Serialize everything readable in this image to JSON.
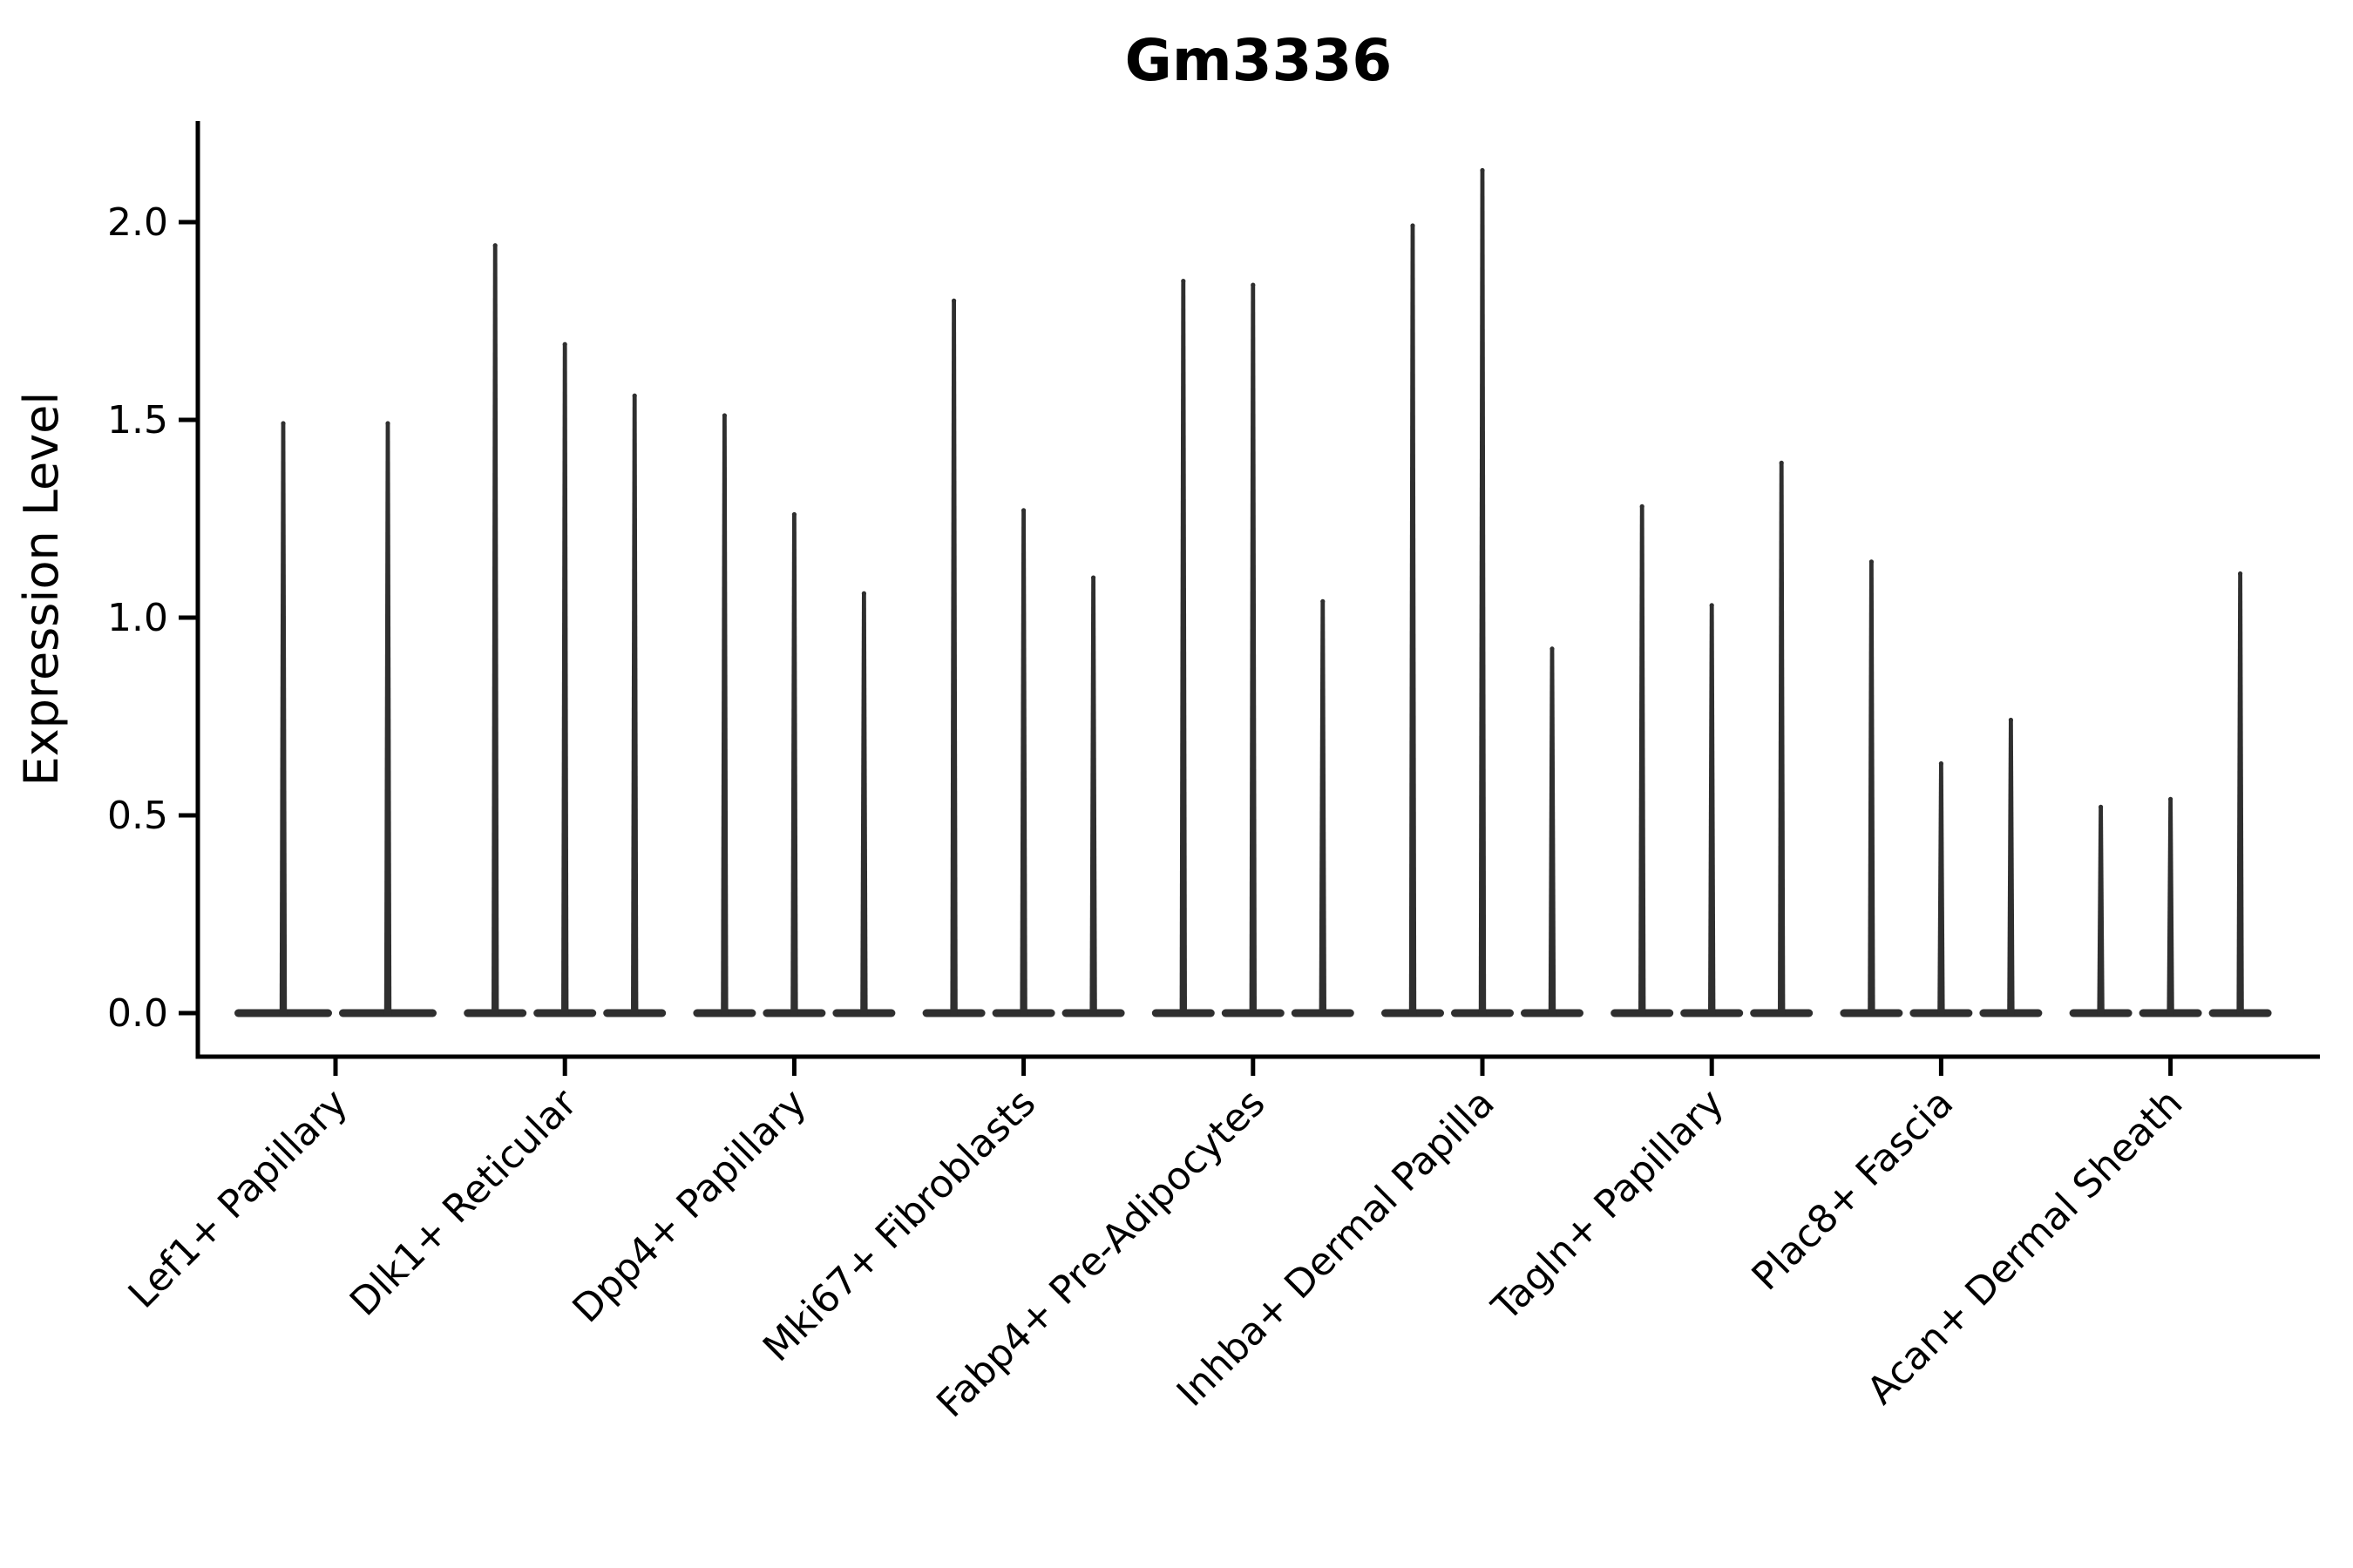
{
  "chart_data": {
    "type": "violin",
    "title": "Gm3336",
    "ylabel": "Expression Level",
    "xlabel": "",
    "ylim": [
      -0.11,
      2.26
    ],
    "yticks": [
      0.0,
      0.5,
      1.0,
      1.5,
      2.0
    ],
    "ytick_labels": [
      "0.0",
      "0.5",
      "1.0",
      "1.5",
      "2.0"
    ],
    "x_tick_rotation_deg": 45,
    "grid": false,
    "legend_position": "none",
    "colors": {
      "violin": "#2f2f2f",
      "axis": "#000000",
      "background": "#ffffff"
    },
    "categories": [
      "Lef1+ Papillary",
      "Dlk1+ Reticular",
      "Dpp4+ Papillary",
      "Mki67+ Fibroblasts",
      "Fabp4+ Pre-Adipocytes",
      "Inhba+ Dermal Papilla",
      "Tagln+ Papillary",
      "Plac8+ Fascia",
      "Acan+ Dermal Sheath"
    ],
    "groups": [
      {
        "label": "Lef1+ Papillary",
        "violin_baseline": 0,
        "violin_max_values": [
          1.5,
          1.5
        ]
      },
      {
        "label": "Dlk1+ Reticular",
        "violin_baseline": 0,
        "violin_max_values": [
          1.95,
          1.7,
          1.57
        ]
      },
      {
        "label": "Dpp4+ Papillary",
        "violin_baseline": 0,
        "violin_max_values": [
          1.52,
          1.27,
          1.07
        ]
      },
      {
        "label": "Mki67+ Fibroblasts",
        "violin_baseline": 0,
        "violin_max_values": [
          1.81,
          1.28,
          1.11
        ]
      },
      {
        "label": "Fabp4+ Pre-Adipocytes",
        "violin_baseline": 0,
        "violin_max_values": [
          1.86,
          1.85,
          1.05
        ]
      },
      {
        "label": "Inhba+ Dermal Papilla",
        "violin_baseline": 0,
        "violin_max_values": [
          2.0,
          2.14,
          0.93
        ]
      },
      {
        "label": "Tagln+ Papillary",
        "violin_baseline": 0,
        "violin_max_values": [
          1.29,
          1.04,
          1.4
        ]
      },
      {
        "label": "Plac8+ Fascia",
        "violin_baseline": 0,
        "violin_max_values": [
          1.15,
          0.64,
          0.75
        ]
      },
      {
        "label": "Acan+ Dermal Sheath",
        "violin_baseline": 0,
        "violin_max_values": [
          0.53,
          0.55,
          1.12
        ]
      }
    ]
  }
}
